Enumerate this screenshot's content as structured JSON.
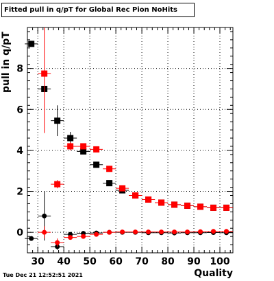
{
  "title": "Fitted pull in q/pT for Global Rec Pion NoHits",
  "timestamp": "Tue Dec 21 12:52:51 2021",
  "chart_data": {
    "type": "scatter",
    "xlabel": "Quality",
    "ylabel": "pull in q/pT",
    "xlim": [
      26,
      105
    ],
    "ylim": [
      -1.0,
      10.0
    ],
    "grid": true,
    "xticks": [
      30,
      40,
      50,
      60,
      70,
      80,
      90,
      100
    ],
    "yticks": [
      0,
      2,
      4,
      6,
      8
    ],
    "series": [
      {
        "marker": "square",
        "color": "#000000",
        "x": [
          27.5,
          32.5,
          37.5,
          42.5,
          47.5,
          52.5,
          57.5,
          62.5,
          67.5,
          72.5,
          77.5,
          82.5,
          87.5,
          92.5,
          97.5,
          102.5
        ],
        "y": [
          9.2,
          7.0,
          5.45,
          4.6,
          3.95,
          3.3,
          2.4,
          2.05,
          1.8,
          1.6,
          1.45,
          1.35,
          1.3,
          1.25,
          1.2,
          1.2
        ],
        "yerr": [
          0.05,
          0.1,
          0.75,
          0.3,
          0.1,
          0.06,
          0.06,
          0.05,
          0.05,
          0.05,
          0.04,
          0.04,
          0.04,
          0.04,
          0.04,
          0.04
        ]
      },
      {
        "marker": "square",
        "color": "#ff0000",
        "x": [
          32.5,
          37.5,
          42.5,
          47.5,
          52.5,
          57.5,
          62.5,
          67.5,
          72.5,
          77.5,
          82.5,
          87.5,
          92.5,
          97.5,
          102.5
        ],
        "y": [
          7.75,
          2.35,
          4.2,
          4.2,
          4.05,
          3.1,
          2.15,
          1.8,
          1.6,
          1.45,
          1.35,
          1.3,
          1.25,
          1.2,
          1.2
        ],
        "yerr": [
          2.9,
          0.2,
          0.2,
          0.1,
          0.08,
          0.06,
          0.06,
          0.05,
          0.05,
          0.04,
          0.04,
          0.04,
          0.04,
          0.04,
          0.04
        ]
      },
      {
        "marker": "circle",
        "color": "#000000",
        "x": [
          27.5,
          32.5,
          37.5,
          42.5,
          47.5,
          52.5,
          57.5,
          62.5,
          67.5,
          72.5,
          77.5,
          82.5,
          87.5,
          92.5,
          97.5,
          102.5
        ],
        "y": [
          -0.3,
          0.8,
          -0.7,
          -0.1,
          -0.05,
          -0.03,
          0.0,
          0.0,
          0.0,
          -0.02,
          -0.02,
          -0.03,
          -0.02,
          -0.02,
          -0.01,
          -0.02
        ],
        "yerr": [
          0.05,
          1.2,
          0.15,
          0.08,
          0.05,
          0.04,
          0.03,
          0.03,
          0.03,
          0.03,
          0.03,
          0.03,
          0.03,
          0.03,
          0.03,
          0.03
        ]
      },
      {
        "marker": "circle",
        "color": "#ff0000",
        "x": [
          32.5,
          37.5,
          42.5,
          47.5,
          52.5,
          57.5,
          62.5,
          67.5,
          72.5,
          77.5,
          82.5,
          87.5,
          92.5,
          97.5,
          102.5
        ],
        "y": [
          0.0,
          -0.5,
          -0.25,
          -0.2,
          -0.1,
          0.0,
          0.02,
          0.02,
          0.02,
          0.02,
          0.02,
          0.02,
          0.03,
          0.05,
          0.05
        ],
        "yerr": [
          0.3,
          0.2,
          0.08,
          0.06,
          0.05,
          0.04,
          0.03,
          0.03,
          0.03,
          0.03,
          0.03,
          0.03,
          0.03,
          0.03,
          0.03
        ]
      }
    ]
  }
}
